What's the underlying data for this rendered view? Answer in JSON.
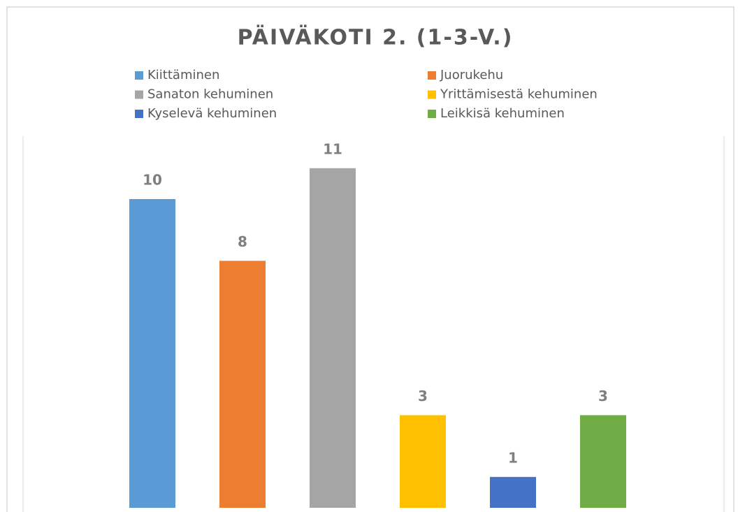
{
  "chart_data": {
    "type": "bar",
    "title": "PÄIVÄKOTI 2. (1-3-V.)",
    "series": [
      {
        "name": "Kiittäminen",
        "color": "#5b9bd5",
        "values": [
          10
        ]
      },
      {
        "name": "Juorukehu",
        "color": "#ed7d31",
        "values": [
          8
        ]
      },
      {
        "name": "Sanaton kehuminen",
        "color": "#a5a5a5",
        "values": [
          11
        ]
      },
      {
        "name": "Yrittämisestä kehuminen",
        "color": "#ffc000",
        "values": [
          3
        ]
      },
      {
        "name": "Kyselevä kehuminen",
        "color": "#4472c4",
        "values": [
          1
        ]
      },
      {
        "name": "Leikkisä kehuminen",
        "color": "#70ad47",
        "values": [
          3
        ]
      }
    ]
  }
}
